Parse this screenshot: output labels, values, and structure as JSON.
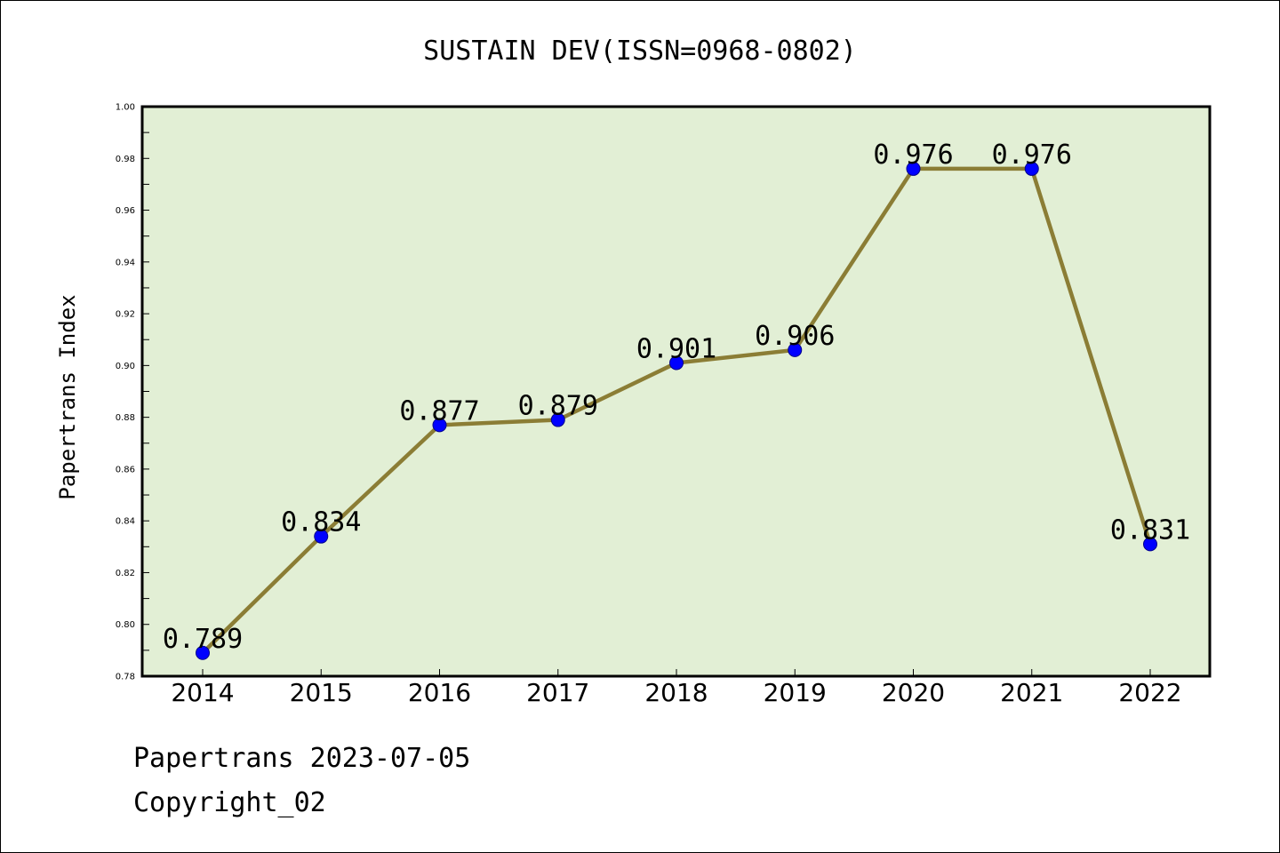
{
  "footer": {
    "line1": "Papertrans 2023-07-05",
    "line2": "Copyright_02"
  },
  "chart_data": {
    "type": "line",
    "title": "SUSTAIN DEV(ISSN=0968-0802)",
    "xlabel": "",
    "ylabel": "Papertrans Index",
    "categories": [
      "2014",
      "2015",
      "2016",
      "2017",
      "2018",
      "2019",
      "2020",
      "2021",
      "2022"
    ],
    "series": [
      {
        "values": [
          0.789,
          0.834,
          0.877,
          0.879,
          0.901,
          0.906,
          0.976,
          0.976,
          0.831
        ],
        "labels": [
          "0.789",
          "0.834",
          "0.877",
          "0.879",
          "0.901",
          "0.906",
          "0.976",
          "0.976",
          "0.831"
        ]
      }
    ],
    "ylim": [
      0.78,
      1.0
    ],
    "yticks": [
      "0.78",
      "0.80",
      "0.82",
      "0.84",
      "0.86",
      "0.88",
      "0.90",
      "0.92",
      "0.94",
      "0.96",
      "0.98",
      "1.00"
    ],
    "grid": false,
    "colors": {
      "plot_background": "#e2efd5",
      "line": "#8b7d35",
      "marker": "#0000ff",
      "axis": "#000000"
    }
  }
}
